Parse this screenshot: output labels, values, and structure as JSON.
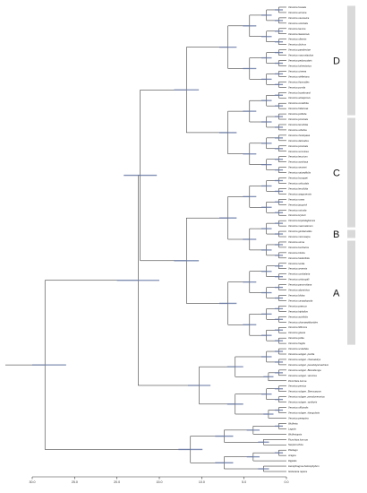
{
  "colors": {
    "branch": "#1a1a1a",
    "hpd_bar": "#6b7ca8",
    "clade_bar": "#d9d9d9"
  },
  "axis": {
    "min": 0,
    "max": 30,
    "reversed": true,
    "ticks": [
      "30.0",
      "25.0",
      "20.0",
      "15.0",
      "10.0",
      "5.0",
      "0.0"
    ]
  },
  "taxa": [
    "Veronica fuscata",
    "Veronica armena",
    "Veronica caucasica",
    "Veronica orientalis",
    "Veronica taurica",
    "Veronica liwanensis",
    "Veronica oltensis",
    "Veronica dichrus",
    "Veronica paederotae",
    "Veronica macrostachya",
    "Veronica peduncularis",
    "Veronica turkestanica",
    "Veronica cinerea",
    "Veronica stelleriana",
    "Veronica thymoides",
    "Veronica pumila",
    "Veronica bozakmanii",
    "Veronica antalyensis",
    "Veronica cuneifolia",
    "Veronica fridericae",
    "Veronica polifolia",
    "Veronica prostrata",
    "Veronica tenuifolia",
    "Veronica orbelica",
    "Veronica rhodopaea",
    "Veronica dalmatica",
    "Veronica prostrata",
    "Veronica surculosa",
    "Veronica teucrium",
    "Veronica austriaca",
    "Veronica senneni",
    "Veronica saturejifolia",
    "Veronica bourgaei",
    "Veronica orbiculata",
    "Veronica tenuifolia",
    "Veronica aragonensis",
    "Veronica rosea",
    "Veronica jacquinii",
    "Veronica rotunda",
    "Veronica krylovii",
    "Veronica kopetdaghensis",
    "Veronica macrostemon",
    "Veronica gentianoides",
    "Veronica microcarpa",
    "Veronica verna",
    "Veronica bucharica",
    "Veronica triloba",
    "Veronica hederifolia",
    "Veronica lucida",
    "Veronica arvensis",
    "Veronica cymbalaria",
    "Veronica crista-galli",
    "Veronica panormitana",
    "Veronica abyssinica",
    "Veronica biloba",
    "Veronica campylopoda",
    "Veronica praecox",
    "Veronica triphyllos",
    "Veronica acinifolia",
    "Veronica chamaepithyoides",
    "Veronica filiformis",
    "Veronica glauca",
    "Veronica polita",
    "Veronica fragilis",
    "Veronica scutellata",
    "Veronica subgen. pocilla",
    "Veronica subgen. chamaedrys",
    "Veronica subgen. pseudolysimachium",
    "Veronica subgen. Beccabunga",
    "Veronica subgen. veronica",
    "Picrorhiza kurroa",
    "Veronica persica",
    "Veronica subgen. Stenocarpon",
    "Veronica subgen. pseudoveronica",
    "Veronica subgen. synthyris",
    "Veronica officinalis",
    "Veronica subgen. triangularia",
    "Veronica peregrina",
    "Wulfenia",
    "Lagotis",
    "Wulfeniopsis",
    "Picrorhiza kurrooa",
    "Neopicrorhiza",
    "Plantago",
    "Aragoa",
    "Digitalis",
    "Hemiphragma heterophyllum",
    "Globularia repens"
  ],
  "clades": [
    "D",
    "C",
    "B",
    "A"
  ]
}
